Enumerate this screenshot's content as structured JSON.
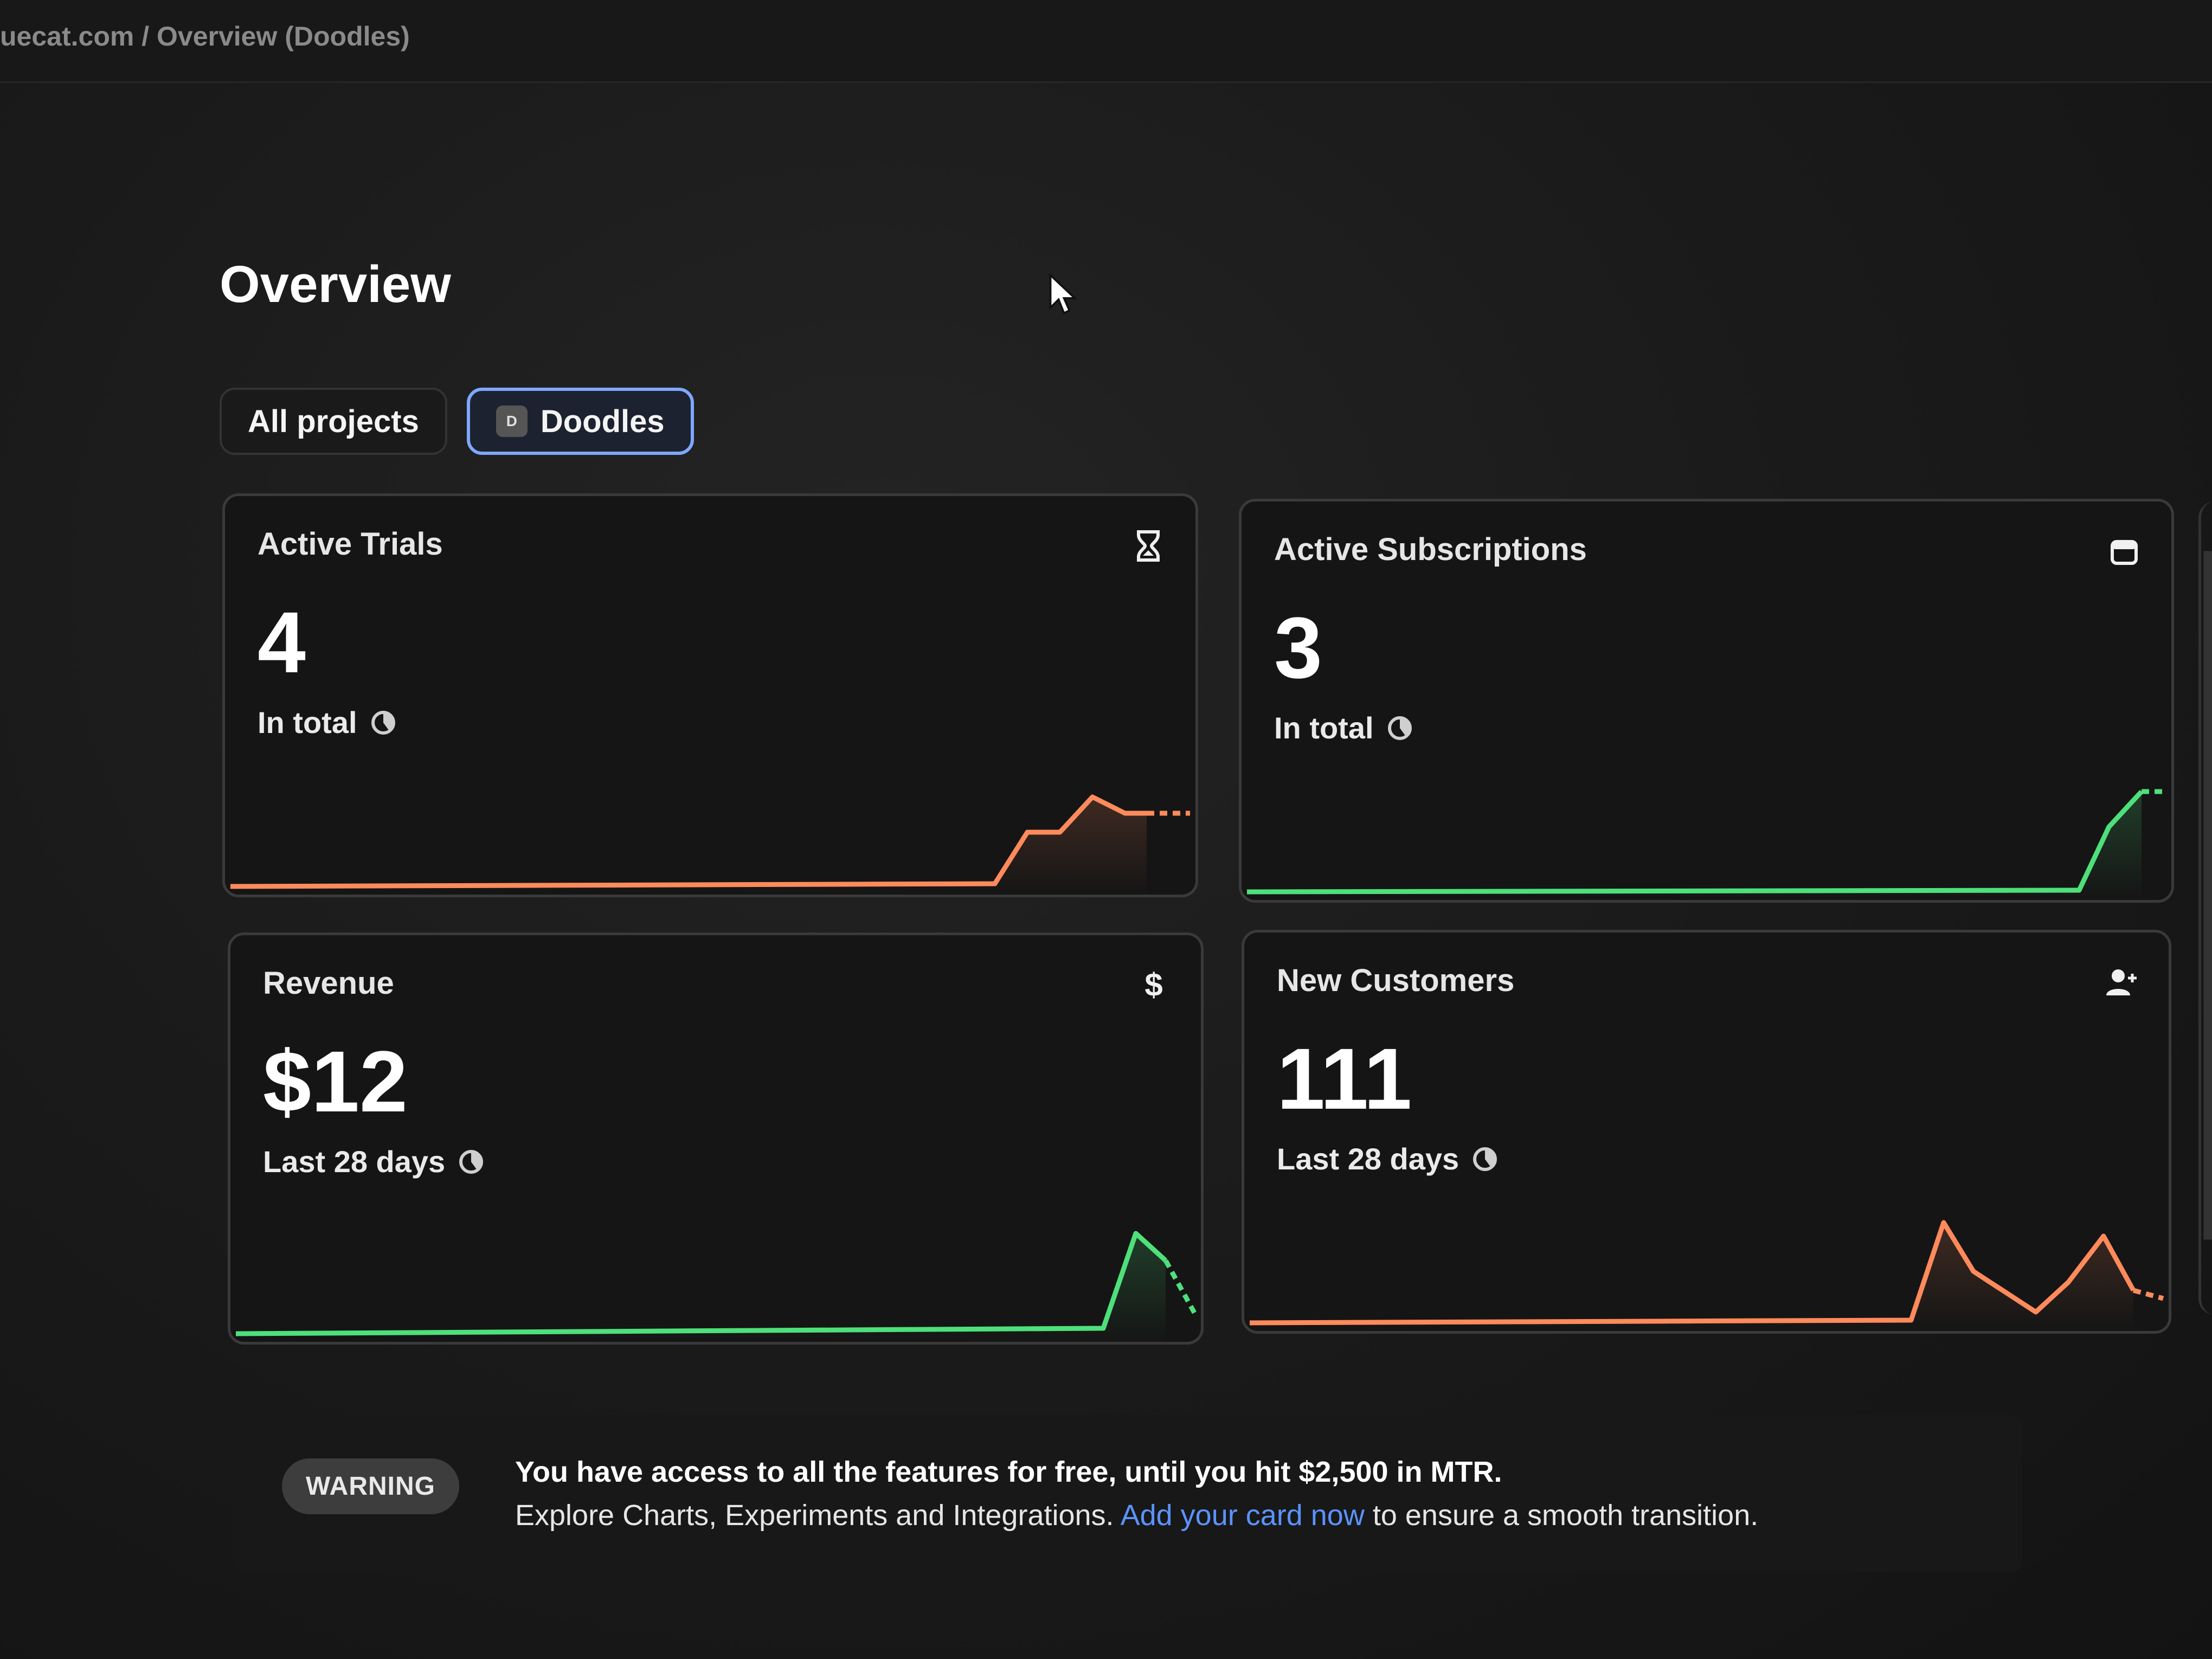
{
  "breadcrumb": "uecat.com / Overview (Doodles)",
  "page": {
    "title": "Overview"
  },
  "tabs": [
    {
      "label": "All projects",
      "active": false
    },
    {
      "label": "Doodles",
      "badge": "D",
      "active": true
    }
  ],
  "cards": {
    "active_trials": {
      "title": "Active Trials",
      "value": "4",
      "subtitle": "In total",
      "icon": "hourglass-icon",
      "color": "#ff8a5c"
    },
    "active_subscriptions": {
      "title": "Active Subscriptions",
      "value": "3",
      "subtitle": "In total",
      "icon": "calendar-icon",
      "color": "#4ee07a"
    },
    "revenue": {
      "title": "Revenue",
      "value": "$12",
      "subtitle": "Last 28 days",
      "icon": "dollar-icon",
      "color": "#4ee07a"
    },
    "new_customers": {
      "title": "New Customers",
      "value": "111",
      "subtitle": "Last 28 days",
      "icon": "add-user-icon",
      "color": "#ff8a5c"
    }
  },
  "banner": {
    "badge": "WARNING",
    "line1": "You have access to all the features for free, until you hit $2,500 in MTR.",
    "line2_before": "Explore Charts, Experiments and Integrations.",
    "link": "Add your card now",
    "line2_after": "to ensure a smooth transition."
  }
}
